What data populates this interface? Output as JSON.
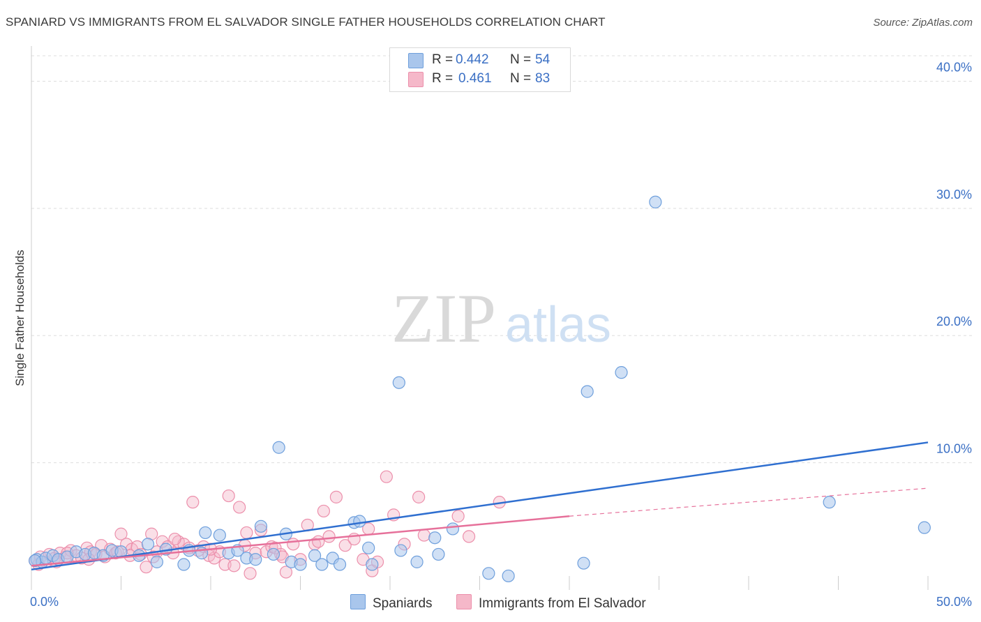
{
  "title": "SPANIARD VS IMMIGRANTS FROM EL SALVADOR SINGLE FATHER HOUSEHOLDS CORRELATION CHART",
  "source": "Source: ZipAtlas.com",
  "watermark": {
    "zip": "ZIP",
    "atlas": "atlas"
  },
  "legend": {
    "rows": [
      {
        "r_label": "R =",
        "r_value": "0.442",
        "n_label": "N =",
        "n_value": "54"
      },
      {
        "r_label": "R =",
        "r_value": "0.461",
        "n_label": "N =",
        "n_value": "83"
      }
    ]
  },
  "bottom_legend": {
    "series1": "Spaniards",
    "series2": "Immigrants from El Salvador"
  },
  "colors": {
    "spaniards_fill": "#a9c6ec",
    "spaniards_stroke": "#6e9fdc",
    "spaniards_line": "#2f6fd0",
    "elsal_fill": "#f5b8c9",
    "elsal_stroke": "#ec8fab",
    "elsal_line": "#e6709a",
    "axis_text": "#3a6fc4",
    "grid": "#dddddd"
  },
  "chart_data": {
    "type": "scatter",
    "title": "SPANIARD VS IMMIGRANTS FROM EL SALVADOR SINGLE FATHER HOUSEHOLDS CORRELATION CHART",
    "xlabel": "",
    "ylabel": "Single Father Households",
    "xlim": [
      0,
      50
    ],
    "ylim": [
      0,
      42
    ],
    "x_tick_labels": [
      "0.0%",
      "50.0%"
    ],
    "y_ticks": [
      10,
      20,
      30,
      40
    ],
    "y_tick_labels": [
      "10.0%",
      "20.0%",
      "30.0%",
      "40.0%"
    ],
    "grid": true,
    "series": [
      {
        "name": "Spaniards",
        "r": 0.442,
        "n": 54,
        "trend": {
          "x0": 0,
          "y0": 1.6,
          "x1": 50,
          "y1": 11.6
        },
        "points": [
          [
            0.3,
            2.4
          ],
          [
            0.6,
            2.2
          ],
          [
            0.8,
            2.5
          ],
          [
            1.2,
            2.7
          ],
          [
            1.5,
            2.4
          ],
          [
            2.0,
            2.6
          ],
          [
            2.5,
            3.0
          ],
          [
            3.0,
            2.8
          ],
          [
            3.5,
            2.9
          ],
          [
            4.0,
            2.7
          ],
          [
            4.5,
            3.1
          ],
          [
            5.0,
            3.0
          ],
          [
            6.0,
            2.7
          ],
          [
            6.5,
            3.6
          ],
          [
            7.0,
            2.2
          ],
          [
            7.5,
            3.2
          ],
          [
            8.5,
            2.0
          ],
          [
            8.8,
            3.1
          ],
          [
            9.5,
            2.9
          ],
          [
            9.7,
            4.5
          ],
          [
            10.5,
            4.3
          ],
          [
            11.0,
            2.9
          ],
          [
            11.5,
            3.1
          ],
          [
            12.0,
            2.5
          ],
          [
            12.5,
            2.4
          ],
          [
            12.8,
            5.0
          ],
          [
            13.5,
            2.8
          ],
          [
            13.8,
            11.2
          ],
          [
            14.2,
            4.4
          ],
          [
            14.5,
            2.2
          ],
          [
            15.0,
            2.0
          ],
          [
            15.8,
            2.7
          ],
          [
            16.2,
            2.0
          ],
          [
            16.8,
            2.5
          ],
          [
            17.2,
            2.0
          ],
          [
            18.0,
            5.3
          ],
          [
            18.3,
            5.4
          ],
          [
            18.8,
            3.3
          ],
          [
            19.0,
            2.0
          ],
          [
            20.5,
            16.3
          ],
          [
            20.6,
            3.1
          ],
          [
            21.5,
            2.2
          ],
          [
            22.5,
            4.1
          ],
          [
            22.7,
            2.8
          ],
          [
            23.5,
            4.8
          ],
          [
            25.5,
            1.3
          ],
          [
            26.6,
            1.1
          ],
          [
            30.8,
            2.1
          ],
          [
            31.0,
            15.6
          ],
          [
            32.9,
            17.1
          ],
          [
            34.8,
            30.5
          ],
          [
            44.5,
            6.9
          ],
          [
            49.8,
            4.9
          ],
          [
            0.2,
            2.3
          ]
        ]
      },
      {
        "name": "Immigrants from El Salvador",
        "r": 0.461,
        "n": 83,
        "trend": {
          "x0": 0,
          "y0": 1.9,
          "x1": 30,
          "y1": 5.8
        },
        "trend_extension": {
          "x0": 30,
          "y0": 5.8,
          "x1": 50,
          "y1": 8.0
        },
        "points": [
          [
            0.2,
            2.3
          ],
          [
            0.5,
            2.6
          ],
          [
            0.8,
            2.2
          ],
          [
            1.0,
            2.8
          ],
          [
            1.3,
            2.5
          ],
          [
            1.6,
            2.9
          ],
          [
            1.9,
            2.6
          ],
          [
            2.2,
            3.1
          ],
          [
            2.5,
            2.7
          ],
          [
            2.8,
            2.5
          ],
          [
            3.1,
            3.3
          ],
          [
            3.3,
            3.0
          ],
          [
            3.6,
            2.8
          ],
          [
            3.9,
            3.5
          ],
          [
            4.1,
            2.6
          ],
          [
            4.4,
            3.2
          ],
          [
            4.7,
            2.9
          ],
          [
            5.0,
            4.4
          ],
          [
            5.3,
            3.6
          ],
          [
            5.6,
            3.2
          ],
          [
            5.9,
            3.4
          ],
          [
            6.1,
            2.8
          ],
          [
            6.4,
            1.8
          ],
          [
            6.7,
            4.4
          ],
          [
            7.0,
            3.0
          ],
          [
            7.3,
            3.8
          ],
          [
            7.6,
            3.4
          ],
          [
            7.9,
            2.9
          ],
          [
            8.2,
            3.8
          ],
          [
            8.5,
            3.6
          ],
          [
            8.8,
            3.3
          ],
          [
            9.0,
            6.9
          ],
          [
            9.3,
            3.1
          ],
          [
            9.6,
            3.4
          ],
          [
            9.9,
            2.7
          ],
          [
            10.2,
            2.5
          ],
          [
            10.5,
            3.0
          ],
          [
            10.8,
            2.0
          ],
          [
            11.0,
            7.4
          ],
          [
            11.3,
            1.9
          ],
          [
            11.6,
            6.5
          ],
          [
            11.9,
            3.5
          ],
          [
            12.2,
            1.3
          ],
          [
            12.5,
            2.9
          ],
          [
            12.8,
            4.7
          ],
          [
            13.1,
            3.0
          ],
          [
            13.4,
            3.4
          ],
          [
            13.6,
            3.3
          ],
          [
            13.9,
            2.8
          ],
          [
            14.2,
            1.4
          ],
          [
            14.6,
            3.6
          ],
          [
            15.0,
            2.4
          ],
          [
            15.4,
            5.1
          ],
          [
            15.8,
            3.6
          ],
          [
            16.3,
            6.2
          ],
          [
            16.6,
            4.2
          ],
          [
            17.0,
            7.3
          ],
          [
            17.5,
            3.5
          ],
          [
            18.0,
            4.0
          ],
          [
            18.5,
            2.4
          ],
          [
            19.0,
            1.5
          ],
          [
            19.3,
            2.2
          ],
          [
            19.8,
            8.9
          ],
          [
            20.2,
            5.9
          ],
          [
            20.8,
            3.6
          ],
          [
            21.6,
            7.3
          ],
          [
            21.9,
            4.3
          ],
          [
            23.8,
            5.8
          ],
          [
            24.4,
            4.2
          ],
          [
            26.1,
            6.9
          ],
          [
            4.8,
            3.0
          ],
          [
            6.8,
            2.6
          ],
          [
            8.0,
            4.0
          ],
          [
            10.0,
            3.2
          ],
          [
            12.0,
            4.5
          ],
          [
            14.0,
            2.6
          ],
          [
            16.0,
            3.8
          ],
          [
            18.8,
            4.8
          ],
          [
            3.2,
            2.4
          ],
          [
            5.5,
            2.7
          ],
          [
            2.0,
            2.9
          ],
          [
            1.4,
            2.2
          ],
          [
            0.4,
            2.0
          ]
        ]
      }
    ]
  }
}
